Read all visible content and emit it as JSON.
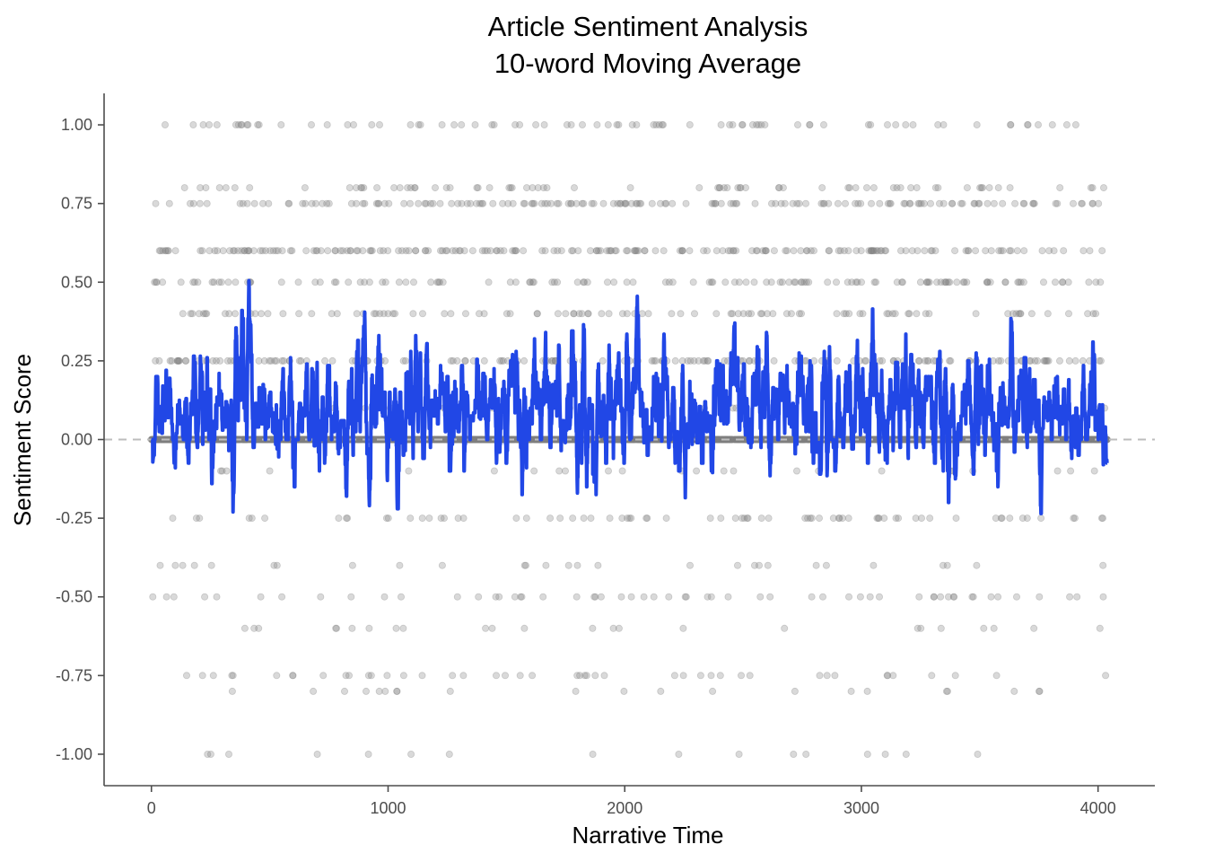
{
  "chart_data": {
    "type": "scatter",
    "title_line1": "Article Sentiment Analysis",
    "title_line2": "10-word Moving Average",
    "xlabel": "Narrative Time",
    "ylabel": "Sentiment Score",
    "xlim": [
      -200,
      4240
    ],
    "ylim": [
      -1.1,
      1.1
    ],
    "x_ticks": [
      0,
      1000,
      2000,
      3000,
      4000
    ],
    "y_ticks": [
      1.0,
      0.75,
      0.5,
      0.25,
      0.0,
      -0.25,
      -0.5,
      -0.75,
      -1.0
    ],
    "x_tick_labels": [
      "0",
      "1000",
      "2000",
      "3000",
      "4000"
    ],
    "y_tick_labels": [
      "1.00",
      "0.75",
      "0.50",
      "0.25",
      "0.00",
      "-0.25",
      "-0.50",
      "-0.75",
      "-1.00"
    ],
    "n_points": 4040,
    "reference_line_y": 0,
    "grid": false,
    "colors": {
      "points": "#808080",
      "moving_average": "#2147e6",
      "reference_line": "#bdbdbd",
      "axis": "#4d4d4d"
    },
    "series": [
      {
        "type": "scatter",
        "description": "word sentiment scores"
      },
      {
        "type": "line",
        "description": "10-word moving average",
        "window": 10
      }
    ],
    "scatter_levels": [
      {
        "y": 1.0,
        "share": 0.02
      },
      {
        "y": 0.8,
        "share": 0.015
      },
      {
        "y": 0.75,
        "share": 0.04
      },
      {
        "y": 0.6,
        "share": 0.05
      },
      {
        "y": 0.5,
        "share": 0.032
      },
      {
        "y": 0.4,
        "share": 0.025
      },
      {
        "y": 0.25,
        "share": 0.04
      },
      {
        "y": 0.1,
        "share": 0.008
      },
      {
        "y": -0.1,
        "share": 0.004
      },
      {
        "y": -0.25,
        "share": 0.018
      },
      {
        "y": -0.4,
        "share": 0.006
      },
      {
        "y": -0.5,
        "share": 0.014
      },
      {
        "y": -0.6,
        "share": 0.006
      },
      {
        "y": -0.75,
        "share": 0.01
      },
      {
        "y": -0.8,
        "share": 0.004
      },
      {
        "y": -1.0,
        "share": 0.004
      }
    ]
  }
}
